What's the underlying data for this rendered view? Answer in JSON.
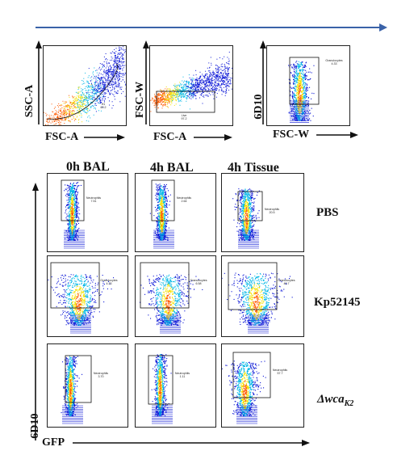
{
  "top_panels": [
    {
      "x_label": "FSC-A",
      "y_label": "SSC-A",
      "gate": {
        "name": "H1",
        "value": "60.2"
      }
    },
    {
      "x_label": "FSC-A",
      "y_label": "FSC-W",
      "gate": {
        "name": "Live",
        "value": "97.2"
      }
    },
    {
      "x_label": "FSC-W",
      "y_label": "6D10",
      "gate": {
        "name": "Granulocytes",
        "value": "4.33"
      }
    }
  ],
  "grid": {
    "columns": [
      "0h BAL",
      "4h BAL",
      "4h Tissue"
    ],
    "rows": [
      {
        "label": "PBS",
        "label_italic": false,
        "gates": [
          {
            "name": "Neutrophils",
            "value": "7.51"
          },
          {
            "name": "Neutrophils",
            "value": "2.64"
          },
          {
            "name": "Neutrophils",
            "value": "20.5"
          }
        ]
      },
      {
        "label": "Kp52145",
        "label_italic": false,
        "gates": [
          {
            "name": "Granulocytes",
            "value": "4.33"
          },
          {
            "name": "Granulocytes",
            "value": "6.58"
          },
          {
            "name": "Granulocytes",
            "value": "40.7"
          }
        ]
      },
      {
        "label": "Δwca",
        "label_sub": "K2",
        "label_italic": true,
        "gates": [
          {
            "name": "Neutrophils",
            "value": "3.70"
          },
          {
            "name": "Neutrophils",
            "value": "1.11"
          },
          {
            "name": "Neutrophils",
            "value": "57.7"
          }
        ]
      }
    ],
    "y_axis_label": "6D10",
    "x_axis_label": "GFP"
  },
  "colors": {
    "top_arrow": "#3a62a8",
    "density_low": "#0b16d6",
    "density_mid": "#00b7e6",
    "density_high": "#f3e200",
    "density_peak": "#ff5a00",
    "axis": "#111111"
  }
}
